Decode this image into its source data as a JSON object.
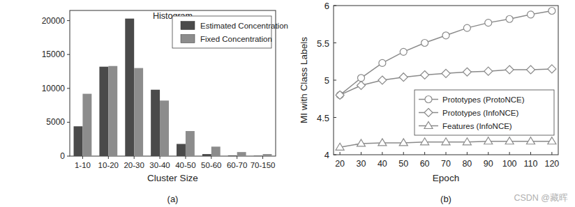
{
  "chart_data": [
    {
      "type": "bar",
      "title": "Histogram",
      "subtitle": "(a)",
      "x_label": "Cluster Size",
      "categories": [
        "1-10",
        "10-20",
        "20-30",
        "30-40",
        "40-50",
        "50-60",
        "60-70",
        "70-150"
      ],
      "series": [
        {
          "name": "Estimated Concentration",
          "color": "#4a4a4a",
          "values": [
            4400,
            13200,
            20300,
            9800,
            1800,
            300,
            100,
            50
          ]
        },
        {
          "name": "Fixed Concentration",
          "color": "#8c8c8c",
          "values": [
            9200,
            13300,
            13000,
            8200,
            3700,
            1400,
            600,
            300
          ]
        }
      ],
      "ylim": [
        0,
        21500
      ],
      "yticks": [
        0,
        5000,
        10000,
        15000,
        20000
      ],
      "grid": false,
      "legend": "upper right"
    },
    {
      "type": "line",
      "subtitle": "(b)",
      "x_label": "Epoch",
      "y_label": "MI with Class Labels",
      "annotations": [
        "CSDN @藏晖"
      ],
      "x": [
        20,
        30,
        40,
        50,
        60,
        70,
        80,
        90,
        100,
        110,
        120
      ],
      "series": [
        {
          "name": "Prototypes (ProtoNCE)",
          "color": "#8a8a8a",
          "marker": "circle",
          "values": [
            4.8,
            5.03,
            5.23,
            5.38,
            5.5,
            5.6,
            5.7,
            5.77,
            5.82,
            5.88,
            5.93
          ]
        },
        {
          "name": "Prototypes (InfoNCE)",
          "color": "#8a8a8a",
          "marker": "diamond",
          "values": [
            4.8,
            4.93,
            5.0,
            5.04,
            5.07,
            5.09,
            5.11,
            5.12,
            5.14,
            5.14,
            5.15
          ]
        },
        {
          "name": "Features (InfoNCE)",
          "color": "#8a8a8a",
          "marker": "triangle",
          "values": [
            4.1,
            4.15,
            4.16,
            4.16,
            4.17,
            4.17,
            4.17,
            4.18,
            4.18,
            4.18,
            4.18
          ]
        }
      ],
      "xlim": [
        17,
        123
      ],
      "xticks": [
        20,
        30,
        40,
        50,
        60,
        70,
        80,
        90,
        100,
        110,
        120
      ],
      "ylim": [
        4,
        6
      ],
      "yticks": [
        4,
        4.5,
        5,
        5.5,
        6
      ],
      "grid": false,
      "legend": "lower right"
    }
  ]
}
